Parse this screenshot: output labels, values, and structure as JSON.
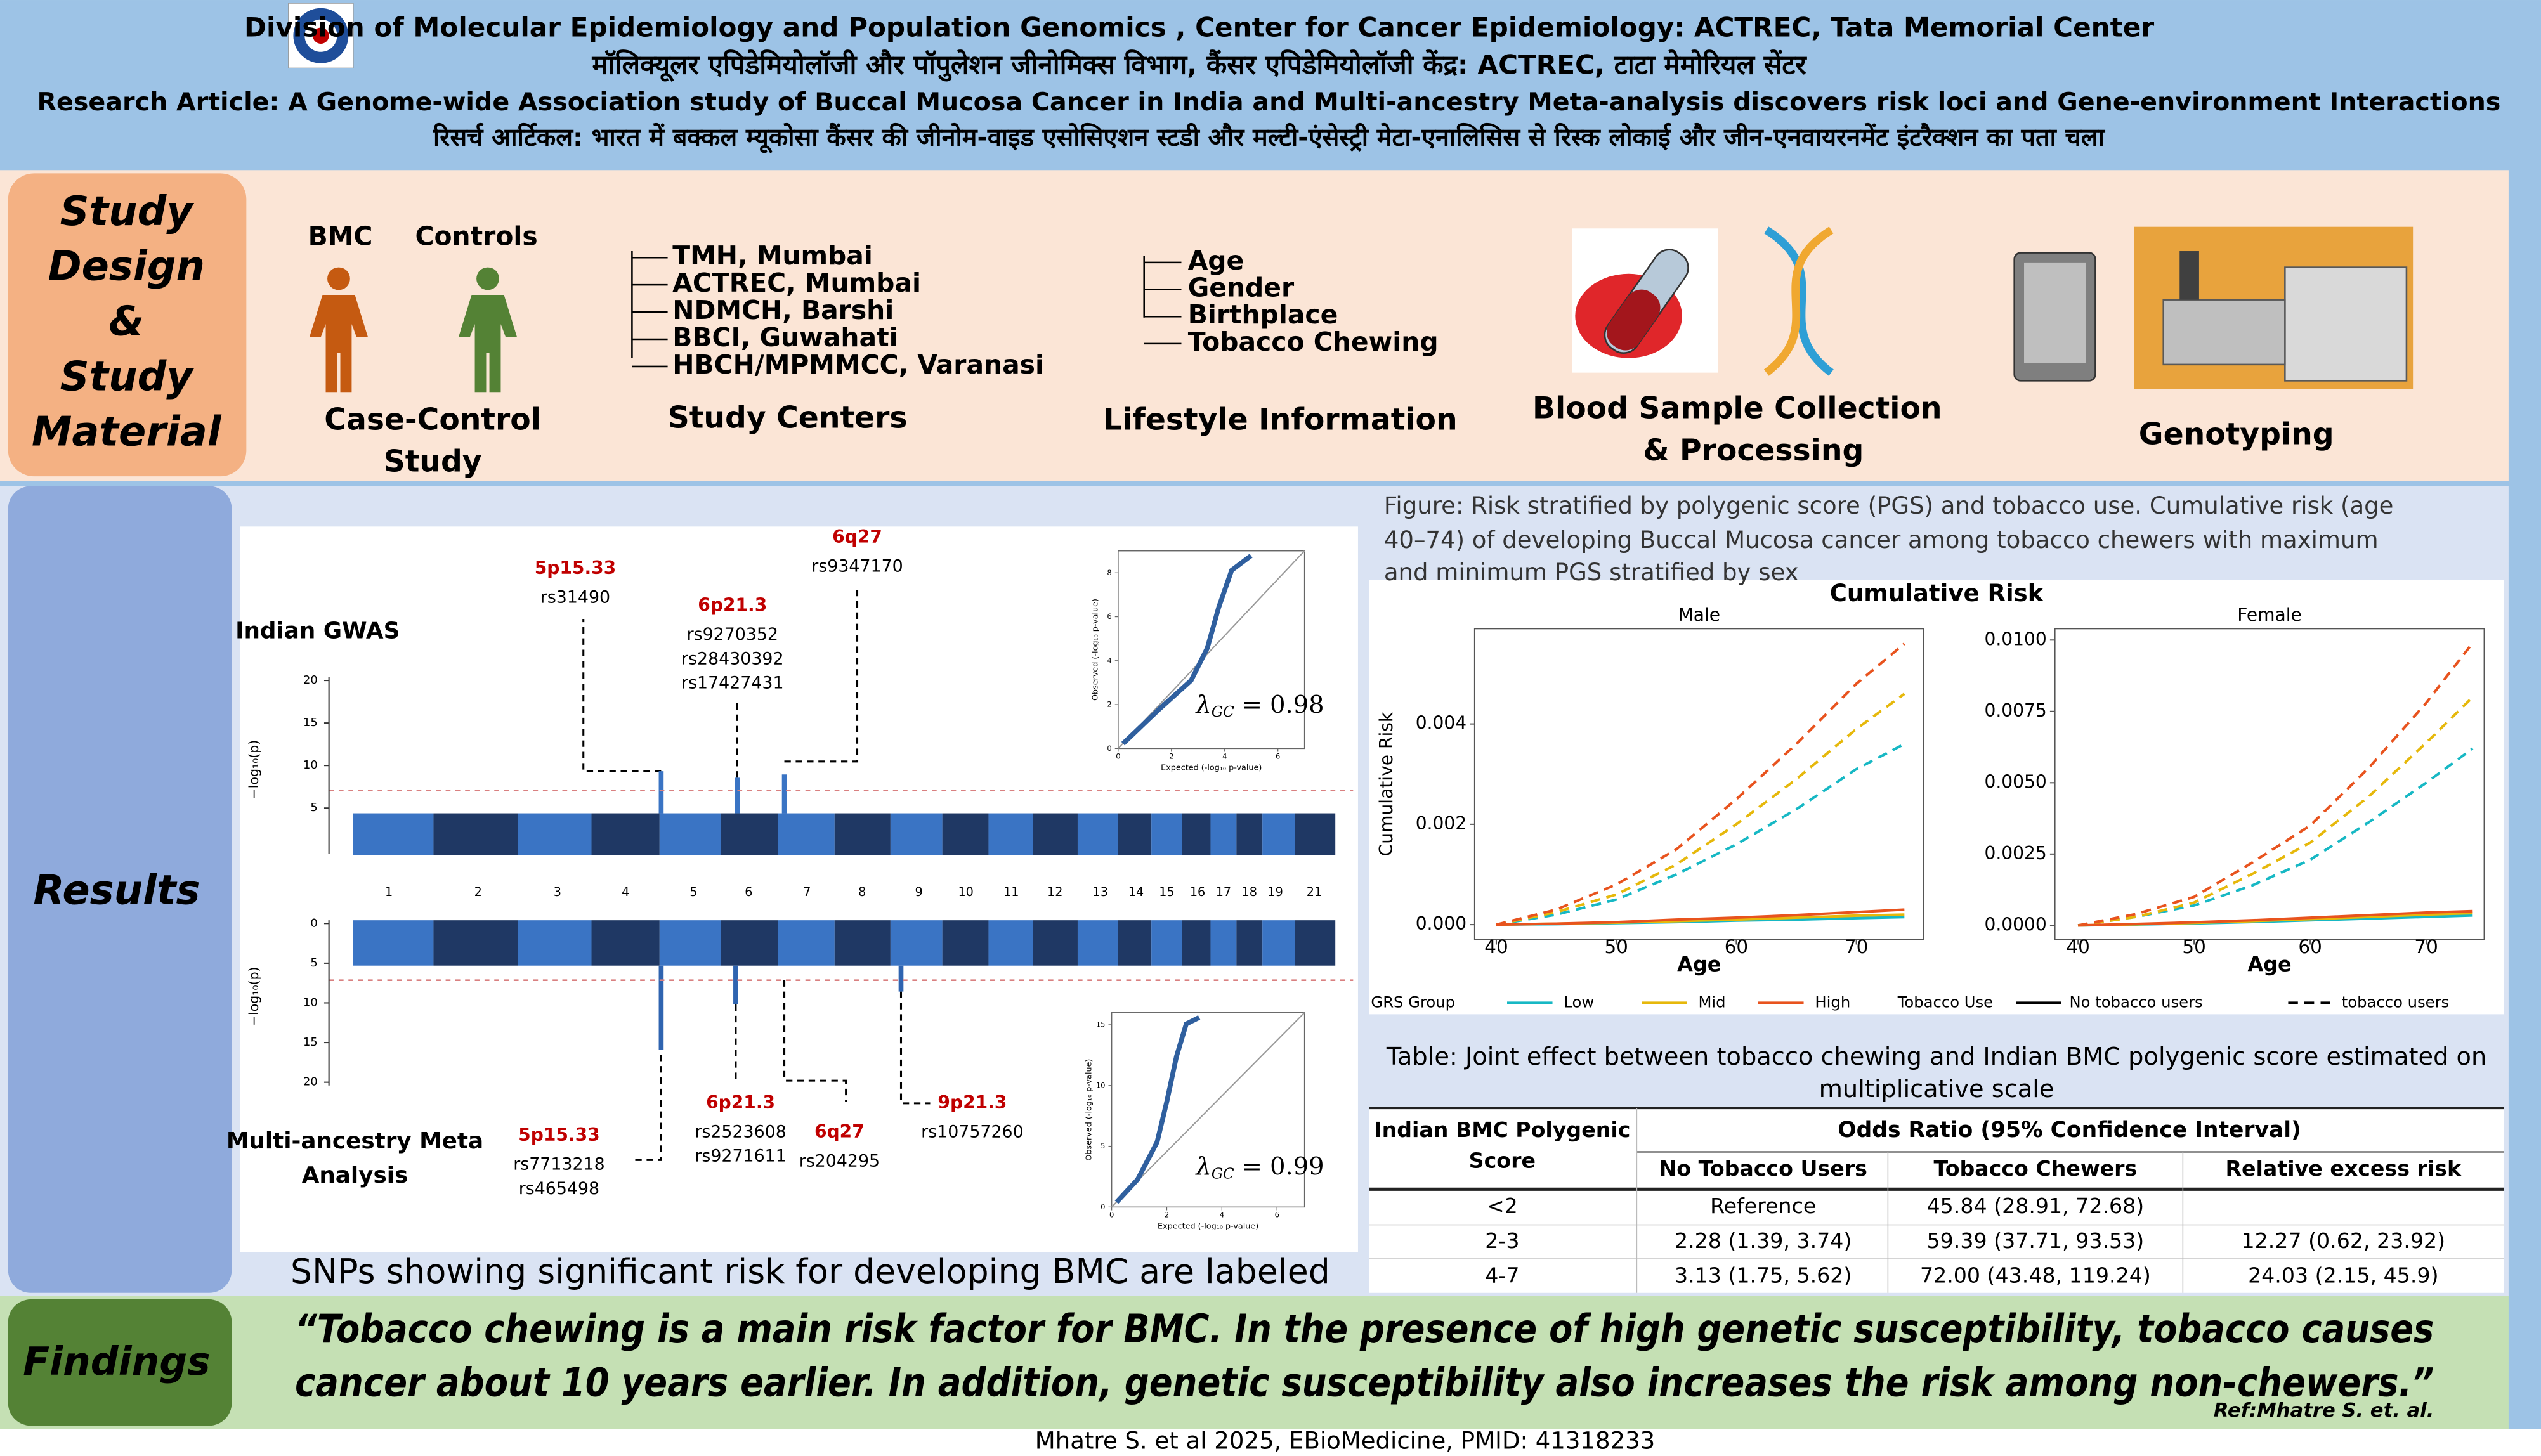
{
  "header": {
    "lines": [
      "Division of Molecular Epidemiology and Population Genomics , Center for Cancer Epidemiology: ACTREC, Tata Memorial Center",
      "मॉलिक्यूलर एपिडेमियोलॉजी और पॉपुलेशन जीनोमिक्स विभाग, कैंसर एपिडेमियोलॉजी केंद्र: ACTREC, टाटा मेमोरियल सेंटर",
      "Research Article: A Genome-wide Association study of Buccal Mucosa Cancer in India and Multi-ancestry Meta-analysis discovers risk loci and Gene-environment Interactions",
      "रिसर्च आर्टिकल: भारत में बक्कल म्यूकोसा कैंसर की जीनोम-वाइड एसोसिएशन स्टडी और मल्टी-एंसेस्ट्री मेटा-एनालिसिस से रिस्क लोकाई और जीन-एनवायरनमेंट इंटरैक्शन का पता चला"
    ]
  },
  "study_design": {
    "label": [
      "Study",
      "Design",
      "&",
      "Study",
      "Material"
    ],
    "case_control": {
      "groups": [
        "BMC",
        "Controls"
      ],
      "title": [
        "Case-Control",
        "Study"
      ]
    },
    "centers": {
      "items": [
        "TMH, Mumbai",
        "ACTREC, Mumbai",
        "NDMCH, Barshi",
        "BBCI, Guwahati",
        "HBCH/MPMMCC, Varanasi"
      ],
      "title": "Study Centers"
    },
    "lifestyle": {
      "items": [
        "Age",
        "Gender",
        "Birthplace",
        "Tobacco Chewing"
      ],
      "title": "Lifestyle Information"
    },
    "blood": {
      "title": [
        "Blood  Sample Collection",
        "& Processing"
      ]
    },
    "genotyping": {
      "title": "Genotyping"
    }
  },
  "results": {
    "label": "Results",
    "manhattan": {
      "chromosomes": [
        "1",
        "2",
        "3",
        "4",
        "5",
        "6",
        "7",
        "8",
        "9",
        "10",
        "11",
        "12",
        "13",
        "14",
        "15",
        "16",
        "17",
        "18",
        "19",
        "21"
      ],
      "top": {
        "title": "Indian GWAS",
        "y_label": "−log₁₀(p)",
        "ylim": [
          0,
          20
        ],
        "yticks": [
          5,
          10,
          15,
          20
        ],
        "annotations": [
          {
            "locus": "5p15.33",
            "snps": [
              "rs31490"
            ]
          },
          {
            "locus": "6p21.3",
            "snps": [
              "rs9270352",
              "rs28430392",
              "rs17427431"
            ]
          },
          {
            "locus": "6q27",
            "snps": [
              "rs9347170"
            ]
          }
        ],
        "qq": {
          "x_label": "Expected (-log₁₀ p-value)",
          "y_label": "Observed (-log₁₀ p-value)",
          "xlim": [
            0,
            7
          ],
          "ylim": [
            0,
            9
          ],
          "xticks": [
            0,
            2,
            4,
            6
          ],
          "yticks": [
            0,
            2,
            4,
            6,
            8
          ],
          "lambda": {
            "symbol": "λ",
            "subscript": "GC",
            "text": " = 0.98"
          }
        }
      },
      "bottom": {
        "title": [
          "Multi-ancestry Meta",
          "Analysis"
        ],
        "y_label": "−log₁₀(p)",
        "ylim": [
          0,
          20
        ],
        "yticks": [
          0,
          5,
          10,
          15,
          20
        ],
        "annotations": [
          {
            "locus": "5p15.33",
            "snps": [
              "rs7713218",
              "rs465498"
            ]
          },
          {
            "locus": "6p21.3",
            "snps": [
              "rs2523608",
              "rs9271611"
            ]
          },
          {
            "locus": "6q27",
            "snps": [
              "rs204295"
            ]
          },
          {
            "locus": "9p21.3",
            "snps": [
              "rs10757260"
            ]
          }
        ],
        "qq": {
          "x_label": "Expected (-log₁₀ p-value)",
          "y_label": "Observed (-log₁₀ p-value)",
          "xlim": [
            0,
            7
          ],
          "ylim": [
            0,
            16
          ],
          "xticks": [
            0,
            2,
            4,
            6
          ],
          "yticks": [
            0,
            5,
            10,
            15
          ],
          "lambda": {
            "symbol": "λ",
            "subscript": "GC",
            "text": " = 0.99"
          }
        }
      }
    },
    "caption": "SNPs showing significant risk for developing BMC are labeled",
    "cumulative_risk": {
      "caption": [
        "Figure: Risk stratified by polygenic score (PGS) and tobacco use. Cumulative risk (age",
        "40–74) of developing Buccal Mucosa cancer among tobacco chewers with maximum",
        "and minimum PGS stratified by sex"
      ],
      "title": "Cumulative Risk",
      "y_label": "Cumulative Risk",
      "x_label": "Age",
      "legend": {
        "group_title": "GRS Group",
        "groups": [
          {
            "name": "Low",
            "color": "#17b8c4"
          },
          {
            "name": "Mid",
            "color": "#e6b80b"
          },
          {
            "name": "High",
            "color": "#e8531e"
          }
        ],
        "use_title": "Tobacco Use",
        "uses": [
          {
            "name": "No tobacco users",
            "dash": false
          },
          {
            "name": "tobacco users",
            "dash": true
          }
        ]
      },
      "panels": [
        {
          "title": "Male",
          "x": [
            40,
            45,
            50,
            55,
            60,
            65,
            70,
            74
          ],
          "xlim": [
            38.2,
            75.6
          ],
          "ylim": [
            -0.0003,
            0.0059
          ],
          "xticks": [
            40,
            50,
            60,
            70
          ],
          "yticks": [
            {
              "value": 0,
              "label": "0.000"
            },
            0.002,
            0.004
          ],
          "series": [
            {
              "group": 0,
              "use": 1,
              "values": [
                0,
                0.0002,
                0.0005,
                0.001,
                0.0016,
                0.0023,
                0.0031,
                0.0036
              ]
            },
            {
              "group": 1,
              "use": 1,
              "values": [
                0,
                0.00025,
                0.0006,
                0.0012,
                0.002,
                0.0029,
                0.0039,
                0.0046
              ]
            },
            {
              "group": 2,
              "use": 1,
              "values": [
                0,
                0.0003,
                0.0008,
                0.0015,
                0.0025,
                0.0036,
                0.0048,
                0.0056
              ]
            },
            {
              "group": 0,
              "use": 0,
              "values": [
                0,
                1e-05,
                3e-05,
                5e-05,
                8e-05,
                0.0001,
                0.00013,
                0.00015
              ]
            },
            {
              "group": 1,
              "use": 0,
              "values": [
                0,
                2e-05,
                4e-05,
                7e-05,
                0.0001,
                0.00014,
                0.00018,
                0.0002
              ]
            },
            {
              "group": 2,
              "use": 0,
              "values": [
                0,
                2e-05,
                5e-05,
                0.0001,
                0.00014,
                0.00019,
                0.00025,
                0.0003
              ]
            }
          ]
        },
        {
          "title": "Female",
          "x": [
            40,
            45,
            50,
            55,
            60,
            65,
            70,
            74
          ],
          "xlim": [
            38,
            75
          ],
          "ylim": [
            -0.0005,
            0.0104
          ],
          "xticks": [
            40,
            50,
            60,
            70
          ],
          "yticks": [
            {
              "value": 0,
              "label": "0.0000"
            },
            0.0025,
            {
              "value": 0.005,
              "label": "0.0050"
            },
            0.0075,
            {
              "value": 0.01,
              "label": "0.0100"
            }
          ],
          "series": [
            {
              "group": 0,
              "use": 1,
              "values": [
                0,
                0.0003,
                0.0007,
                0.0014,
                0.0023,
                0.0036,
                0.005,
                0.0062
              ]
            },
            {
              "group": 1,
              "use": 1,
              "values": [
                0,
                0.0003,
                0.0008,
                0.0018,
                0.0029,
                0.0045,
                0.0064,
                0.008
              ]
            },
            {
              "group": 2,
              "use": 1,
              "values": [
                0,
                0.0004,
                0.001,
                0.0022,
                0.0035,
                0.0055,
                0.0078,
                0.0099
              ]
            },
            {
              "group": 0,
              "use": 0,
              "values": [
                0,
                3e-05,
                7e-05,
                0.00012,
                0.00018,
                0.00024,
                0.0003,
                0.00035
              ]
            },
            {
              "group": 1,
              "use": 0,
              "values": [
                0,
                4e-05,
                9e-05,
                0.00015,
                0.00022,
                0.0003,
                0.00038,
                0.00043
              ]
            },
            {
              "group": 2,
              "use": 0,
              "values": [
                0,
                5e-05,
                0.00011,
                0.00018,
                0.00027,
                0.00036,
                0.00045,
                0.0005
              ]
            }
          ]
        }
      ]
    },
    "table": {
      "caption": [
        "Table: Joint effect  between  tobacco chewing and Indian BMC polygenic score estimated on",
        "multiplicative scale"
      ],
      "header": {
        "row_label": [
          "Indian BMC Polygenic",
          "Score"
        ],
        "group": "Odds Ratio (95% Confidence Interval)",
        "columns": [
          "No Tobacco Users",
          "Tobacco Chewers",
          "Relative excess risk"
        ]
      },
      "rows": [
        [
          "<2",
          "Reference",
          "45.84 (28.91, 72.68)",
          null
        ],
        [
          "2-3",
          "2.28 (1.39, 3.74)",
          "59.39 (37.71, 93.53)",
          "12.27 (0.62, 23.92)"
        ],
        [
          "4-7",
          "3.13 (1.75, 5.62)",
          "72.00 (43.48, 119.24)",
          "24.03 (2.15, 45.9)"
        ]
      ]
    }
  },
  "findings": {
    "label": "Findings",
    "quote": [
      "“Tobacco chewing is a main risk factor for BMC. In the presence of high genetic susceptibility, tobacco causes",
      "cancer about 10 years earlier. In addition, genetic susceptibility also increases the risk among non-chewers.”"
    ],
    "ref": "Ref:Mhatre S. et. al."
  },
  "footer": "Mhatre S. et al 2025, EBioMedicine, PMID: 41318233"
}
